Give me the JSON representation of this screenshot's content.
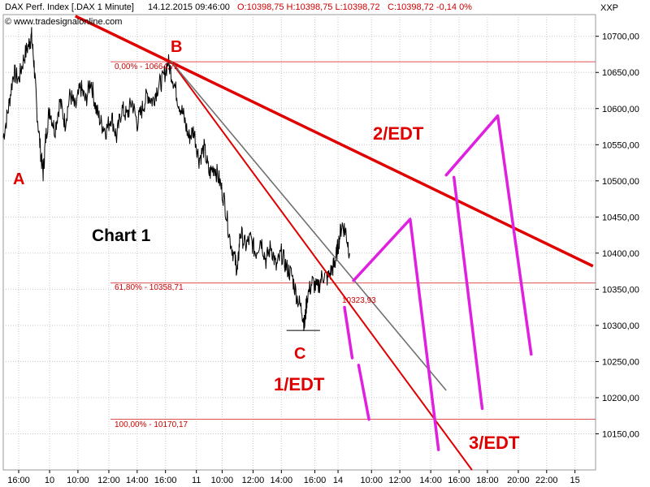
{
  "header": {
    "instrument": "DAX Perf. Index [.DAX  1 Minute]",
    "datetime": "14.12.2015 09:46:00",
    "ohlc": "O:10398,75 H:10398,75 L:10398,72",
    "change": "C:10398,72 -0,14 0%",
    "copyright": "© www.tradesignalonline.com",
    "currency": "XXP"
  },
  "colors": {
    "price": "#000000",
    "trend_red": "#e00000",
    "fib_line": "#e05050",
    "gray_line": "#707070",
    "magenta": "#e020e0",
    "grid": "#c8c8c8"
  },
  "annotations": {
    "chart_label": "Chart 1",
    "A": "A",
    "B": "B",
    "C": "C",
    "edt1": "1/EDT",
    "edt2": "2/EDT",
    "edt3": "3/EDT",
    "fib0": "0,00% - 10664,72",
    "fib618": "61,80% - 10358,71",
    "fib100": "100,00% - 10170,17",
    "low_value": "10323,93"
  },
  "chart_data": {
    "type": "line",
    "ylim": [
      10100,
      10730
    ],
    "x_range": [
      0,
      23
    ],
    "y_ticks": [
      10150,
      10200,
      10250,
      10300,
      10350,
      10400,
      10450,
      10500,
      10550,
      10600,
      10650,
      10700
    ],
    "y_tick_labels": [
      "10150,00",
      "10200,00",
      "10250,00",
      "10300,00",
      "10350,00",
      "10400,00",
      "10450,00",
      "10500,00",
      "10550,00",
      "10600,00",
      "10650,00",
      "10700,00"
    ],
    "x_ticks": [
      0.6,
      1.8,
      2.9,
      4.1,
      5.2,
      6.3,
      7.5,
      8.5,
      9.7,
      10.8,
      12.1,
      13.0,
      14.3,
      15.4,
      16.6,
      17.7,
      18.8,
      20.0,
      21.1,
      22.2
    ],
    "x_tick_labels": [
      "16:00",
      "10",
      "10:00",
      "12:00",
      "14:00",
      "16:00",
      "11",
      "10:00",
      "12:00",
      "14:00",
      "16:00",
      "14",
      "10:00",
      "12:00",
      "14:00",
      "16:00",
      "18:00",
      "20:00",
      "22:00",
      "15"
    ],
    "grid": true,
    "series": [
      {
        "points": [
          [
            0.0,
            10560
          ],
          [
            0.2,
            10600
          ],
          [
            0.4,
            10650
          ],
          [
            0.6,
            10640
          ],
          [
            0.8,
            10670
          ],
          [
            1.0,
            10690
          ],
          [
            1.1,
            10700
          ],
          [
            1.2,
            10660
          ],
          [
            1.3,
            10600
          ],
          [
            1.45,
            10540
          ],
          [
            1.55,
            10510
          ],
          [
            1.65,
            10560
          ],
          [
            1.8,
            10600
          ],
          [
            2.0,
            10570
          ],
          [
            2.2,
            10610
          ],
          [
            2.4,
            10580
          ],
          [
            2.6,
            10620
          ],
          [
            2.8,
            10600
          ],
          [
            3.0,
            10630
          ],
          [
            3.2,
            10610
          ],
          [
            3.4,
            10640
          ],
          [
            3.6,
            10600
          ],
          [
            3.8,
            10580
          ],
          [
            4.0,
            10570
          ],
          [
            4.2,
            10590
          ],
          [
            4.4,
            10560
          ],
          [
            4.6,
            10600
          ],
          [
            4.8,
            10590
          ],
          [
            5.0,
            10610
          ],
          [
            5.2,
            10580
          ],
          [
            5.4,
            10600
          ],
          [
            5.6,
            10620
          ],
          [
            5.8,
            10610
          ],
          [
            6.0,
            10630
          ],
          [
            6.2,
            10640
          ],
          [
            6.4,
            10665
          ],
          [
            6.6,
            10640
          ],
          [
            6.8,
            10610
          ],
          [
            7.0,
            10590
          ],
          [
            7.2,
            10560
          ],
          [
            7.4,
            10570
          ],
          [
            7.6,
            10530
          ],
          [
            7.8,
            10545
          ],
          [
            8.0,
            10510
          ],
          [
            8.2,
            10520
          ],
          [
            8.4,
            10500
          ],
          [
            8.6,
            10470
          ],
          [
            8.8,
            10420
          ],
          [
            9.0,
            10390
          ],
          [
            9.1,
            10375
          ],
          [
            9.2,
            10430
          ],
          [
            9.4,
            10410
          ],
          [
            9.6,
            10420
          ],
          [
            9.8,
            10400
          ],
          [
            10.0,
            10420
          ],
          [
            10.2,
            10390
          ],
          [
            10.4,
            10410
          ],
          [
            10.6,
            10380
          ],
          [
            10.8,
            10400
          ],
          [
            11.0,
            10380
          ],
          [
            11.2,
            10370
          ],
          [
            11.4,
            10340
          ],
          [
            11.6,
            10320
          ],
          [
            11.7,
            10300
          ],
          [
            11.8,
            10340
          ],
          [
            12.0,
            10360
          ],
          [
            12.2,
            10350
          ],
          [
            12.4,
            10370
          ],
          [
            12.6,
            10365
          ],
          [
            12.8,
            10380
          ],
          [
            12.9,
            10390
          ],
          [
            13.0,
            10410
          ],
          [
            13.15,
            10440
          ],
          [
            13.3,
            10430
          ],
          [
            13.45,
            10400
          ]
        ]
      }
    ],
    "fib_levels": [
      {
        "label": "0,00% - 10664,72",
        "value": 10664.72
      },
      {
        "label": "61,80% - 10358,71",
        "value": 10358.71
      },
      {
        "label": "100,00% - 10170,17",
        "value": 10170.17
      }
    ],
    "trend_lines": [
      {
        "color": "trend_red",
        "from": [
          2.8,
          10728
        ],
        "to": [
          22.9,
          10382
        ]
      },
      {
        "color": "trend_red",
        "from": [
          6.5,
          10666
        ],
        "to": [
          18.2,
          10100
        ]
      },
      {
        "color": "gray_line",
        "from": [
          6.5,
          10666
        ],
        "to": [
          17.2,
          10210
        ]
      }
    ],
    "swing_lines": [
      [
        [
          13.6,
          10362
        ],
        [
          15.8,
          10447
        ],
        [
          16.9,
          10128
        ]
      ],
      [
        [
          17.2,
          10508
        ],
        [
          19.2,
          10590
        ],
        [
          20.5,
          10260
        ]
      ],
      [
        [
          17.5,
          10505
        ],
        [
          18.6,
          10185
        ]
      ],
      [
        [
          13.25,
          10325
        ],
        [
          13.55,
          10255
        ]
      ],
      [
        [
          13.8,
          10245
        ],
        [
          14.2,
          10170
        ]
      ]
    ],
    "low_bar": {
      "x_from": 11.0,
      "x_to": 12.3,
      "y": 10293
    }
  }
}
